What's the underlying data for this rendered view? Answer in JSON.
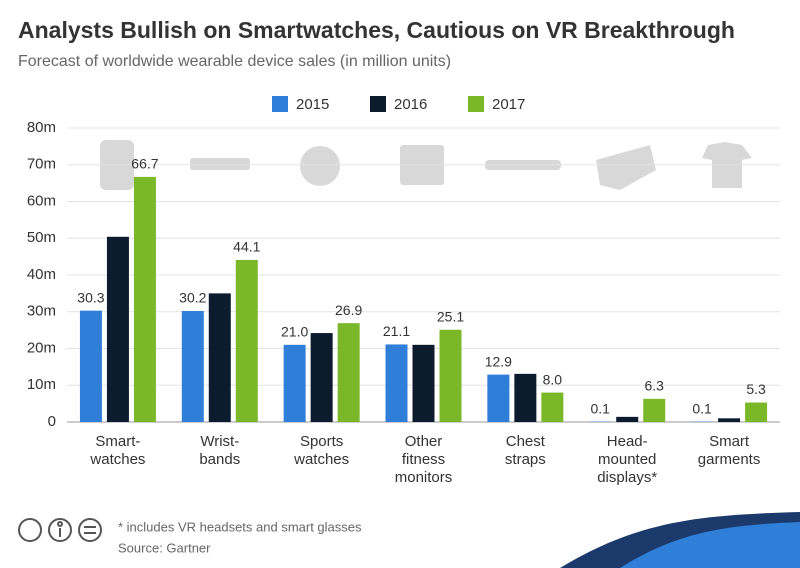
{
  "chart_data": {
    "type": "bar",
    "title": "Analysts Bullish on Smartwatches, Cautious on VR Breakthrough",
    "subtitle": "Forecast of worldwide wearable device sales (in million units)",
    "categories": [
      "Smart-\nwatches",
      "Wrist-\nbands",
      "Sports\nwatches",
      "Other\nfitness\nmonitors",
      "Chest\nstraps",
      "Head-\nmounted\ndisplays*",
      "Smart\ngarments"
    ],
    "series": [
      {
        "name": "2015",
        "color": "#2f7ed8",
        "values": [
          30.3,
          30.2,
          21.0,
          21.1,
          12.9,
          0.1,
          0.1
        ],
        "value_labels": [
          "30.3",
          "30.2",
          "21.0",
          "21.1",
          "12.9",
          "0.1",
          "0.1"
        ]
      },
      {
        "name": "2016",
        "color": "#0d1b2e",
        "values": [
          50.4,
          35.0,
          24.2,
          21.0,
          13.1,
          1.4,
          1.0
        ]
      },
      {
        "name": "2017",
        "color": "#7ab829",
        "values": [
          66.7,
          44.1,
          26.9,
          25.1,
          8.0,
          6.3,
          5.3
        ],
        "value_labels": [
          "66.7",
          "44.1",
          "26.9",
          "25.1",
          "8.0",
          "6.3",
          "5.3"
        ]
      }
    ],
    "ylim": [
      0,
      80
    ],
    "yticks": [
      0,
      {
        "value": 10,
        "label": "10m"
      },
      {
        "value": 20,
        "label": "20m"
      },
      {
        "value": 30,
        "label": "30m"
      },
      {
        "value": 40,
        "label": "40m"
      },
      {
        "value": 50,
        "label": "50m"
      },
      {
        "value": 60,
        "label": "60m"
      },
      {
        "value": 70,
        "label": "70m"
      },
      {
        "value": 80,
        "label": "80m"
      }
    ],
    "grid": true,
    "legend": "top",
    "footnote": "* includes VR headsets and smart glasses",
    "source": "Source: Gartner"
  }
}
